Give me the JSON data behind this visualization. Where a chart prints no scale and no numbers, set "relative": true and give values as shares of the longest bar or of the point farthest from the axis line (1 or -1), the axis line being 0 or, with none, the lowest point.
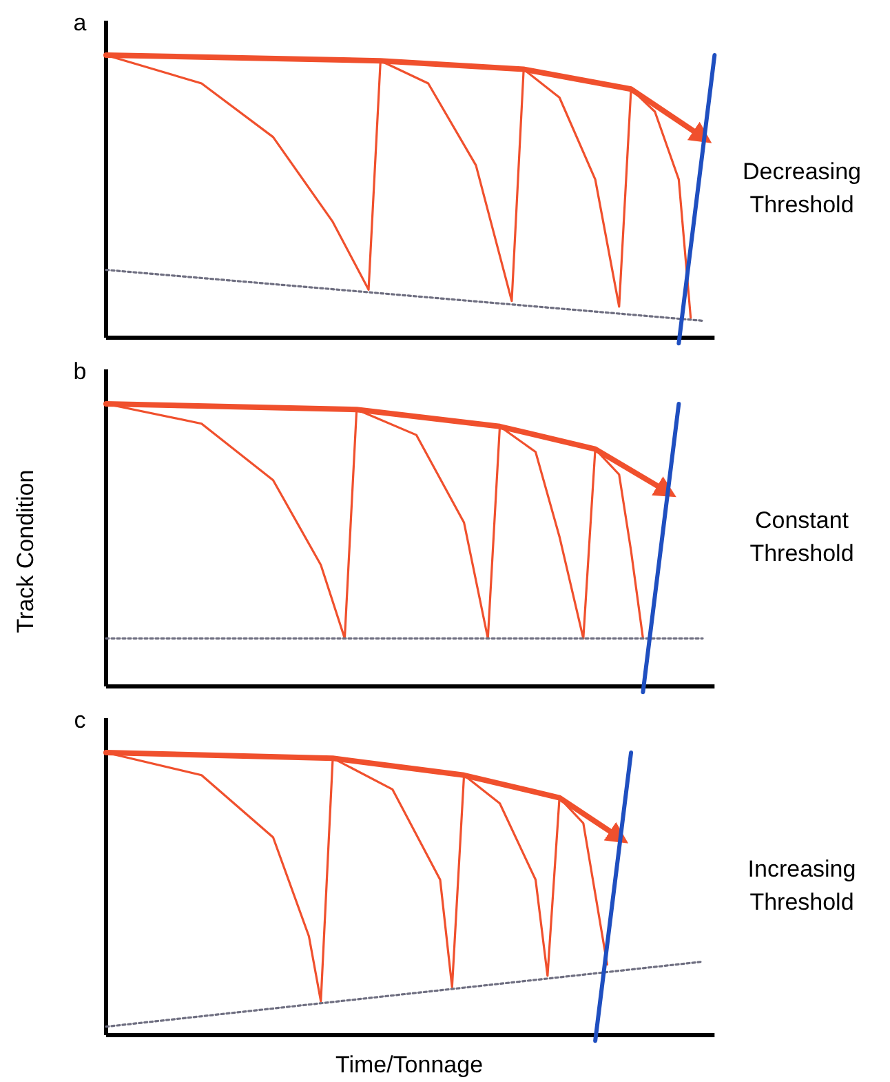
{
  "chart_data": [
    {
      "type": "line",
      "title": "a",
      "relative": true,
      "annotations": [
        "Decreasing Threshold"
      ],
      "categories": [
        null,
        null,
        null,
        null,
        null,
        null,
        null,
        null,
        null,
        null,
        null,
        null,
        null,
        null,
        null,
        null,
        null,
        null,
        null,
        null,
        null,
        null,
        null,
        null,
        null,
        null,
        null,
        null,
        null,
        null,
        null,
        null,
        null,
        null,
        null,
        null,
        null,
        null,
        null,
        null,
        null,
        null,
        null,
        null,
        null,
        null,
        null,
        null,
        null,
        null,
        null,
        null
      ],
      "series": [
        {
          "color": "#f0502d",
          "values": [
            1,
            null,
            null,
            null,
            null,
            null,
            null,
            null,
            null,
            null,
            null,
            null,
            null,
            null,
            null,
            null,
            null,
            null,
            null,
            null,
            null,
            null,
            null,
            0.98,
            null,
            null,
            null,
            null,
            null,
            null,
            null,
            null,
            null,
            null,
            null,
            0.95,
            null,
            null,
            null,
            null,
            null,
            null,
            null,
            null,
            0.88,
            null,
            null,
            null,
            null,
            null,
            0.71,
            null
          ]
        },
        {
          "color": "#f0502d",
          "values": [
            1,
            null,
            null,
            null,
            null,
            null,
            null,
            null,
            0.9,
            null,
            null,
            null,
            null,
            null,
            0.71,
            null,
            null,
            null,
            null,
            0.41,
            null,
            null,
            0.17,
            0.98,
            null,
            null,
            null,
            null,
            null,
            null,
            null,
            null,
            null,
            null,
            null,
            null,
            null,
            null,
            null,
            null,
            null,
            null,
            null,
            null,
            null,
            null,
            null,
            null,
            null,
            null,
            null,
            null
          ]
        },
        {
          "color": "#f0502d",
          "values": [
            null,
            null,
            null,
            null,
            null,
            null,
            null,
            null,
            null,
            null,
            null,
            null,
            null,
            null,
            null,
            null,
            null,
            null,
            null,
            null,
            null,
            null,
            null,
            0.98,
            null,
            null,
            null,
            0.9,
            null,
            null,
            null,
            0.61,
            null,
            null,
            0.13,
            0.95,
            null,
            null,
            null,
            null,
            null,
            null,
            null,
            null,
            null,
            null,
            null,
            null,
            null,
            null,
            null,
            null
          ]
        },
        {
          "color": "#f0502d",
          "values": [
            null,
            null,
            null,
            null,
            null,
            null,
            null,
            null,
            null,
            null,
            null,
            null,
            null,
            null,
            null,
            null,
            null,
            null,
            null,
            null,
            null,
            null,
            null,
            null,
            null,
            null,
            null,
            null,
            null,
            null,
            null,
            null,
            null,
            null,
            null,
            0.95,
            null,
            null,
            0.85,
            null,
            null,
            0.56,
            null,
            0.11,
            0.88,
            null,
            null,
            null,
            null,
            null,
            null,
            null
          ]
        },
        {
          "color": "#f0502d",
          "values": [
            null,
            null,
            null,
            null,
            null,
            null,
            null,
            null,
            null,
            null,
            null,
            null,
            null,
            null,
            null,
            null,
            null,
            null,
            null,
            null,
            null,
            null,
            null,
            null,
            null,
            null,
            null,
            null,
            null,
            null,
            null,
            null,
            null,
            null,
            null,
            null,
            null,
            null,
            null,
            null,
            null,
            null,
            null,
            null,
            0.88,
            null,
            0.8,
            null,
            0.56,
            0.07,
            null,
            null
          ]
        },
        {
          "color": "#6e6e80",
          "line_style": "dotted",
          "values": [
            0.24,
            null,
            null,
            null,
            null,
            null,
            null,
            null,
            null,
            null,
            null,
            null,
            null,
            null,
            null,
            null,
            null,
            null,
            null,
            null,
            null,
            null,
            null,
            null,
            null,
            null,
            null,
            null,
            null,
            null,
            null,
            null,
            null,
            null,
            null,
            null,
            null,
            null,
            null,
            null,
            null,
            null,
            null,
            null,
            null,
            null,
            null,
            null,
            null,
            null,
            0.06,
            null
          ]
        },
        {
          "color": "#1f4fc0",
          "values": [
            null,
            null,
            null,
            null,
            null,
            null,
            null,
            null,
            null,
            null,
            null,
            null,
            null,
            null,
            null,
            null,
            null,
            null,
            null,
            null,
            null,
            null,
            null,
            null,
            null,
            null,
            null,
            null,
            null,
            null,
            null,
            null,
            null,
            null,
            null,
            null,
            null,
            null,
            null,
            null,
            null,
            null,
            null,
            null,
            null,
            null,
            null,
            null,
            -0.02,
            null,
            null,
            1
          ]
        }
      ]
    },
    {
      "type": "line",
      "title": "b",
      "ylabel": "Track Condition",
      "relative": true,
      "annotations": [
        "Constant Threshold"
      ],
      "categories": [
        null,
        null,
        null,
        null,
        null,
        null,
        null,
        null,
        null,
        null,
        null,
        null,
        null,
        null,
        null,
        null,
        null,
        null,
        null,
        null,
        null,
        null,
        null,
        null,
        null,
        null,
        null,
        null,
        null,
        null,
        null,
        null,
        null,
        null,
        null,
        null,
        null,
        null,
        null,
        null,
        null,
        null,
        null,
        null,
        null,
        null,
        null,
        null,
        null,
        null,
        null,
        null
      ],
      "series": [
        {
          "color": "#f0502d",
          "values": [
            1,
            null,
            null,
            null,
            null,
            null,
            null,
            null,
            null,
            null,
            null,
            null,
            null,
            null,
            null,
            null,
            null,
            null,
            null,
            null,
            null,
            0.98,
            null,
            null,
            null,
            null,
            null,
            null,
            null,
            null,
            null,
            null,
            null,
            0.92,
            null,
            null,
            null,
            null,
            null,
            null,
            null,
            0.84,
            null,
            null,
            null,
            null,
            null,
            0.69,
            null,
            null,
            null,
            null
          ]
        },
        {
          "color": "#f0502d",
          "values": [
            1,
            null,
            null,
            null,
            null,
            null,
            null,
            null,
            0.93,
            null,
            null,
            null,
            null,
            null,
            0.73,
            null,
            null,
            null,
            0.43,
            null,
            0.17,
            0.98,
            null,
            null,
            null,
            null,
            null,
            null,
            null,
            null,
            null,
            null,
            null,
            null,
            null,
            null,
            null,
            null,
            null,
            null,
            null,
            null,
            null,
            null,
            null,
            null,
            null,
            null,
            null,
            null,
            null,
            null
          ]
        },
        {
          "color": "#f0502d",
          "values": [
            null,
            null,
            null,
            null,
            null,
            null,
            null,
            null,
            null,
            null,
            null,
            null,
            null,
            null,
            null,
            null,
            null,
            null,
            null,
            null,
            null,
            0.98,
            null,
            null,
            null,
            null,
            0.89,
            null,
            null,
            null,
            0.58,
            null,
            0.17,
            0.92,
            null,
            null,
            null,
            null,
            null,
            null,
            null,
            null,
            null,
            null,
            null,
            null,
            null,
            null,
            null,
            null,
            null,
            null
          ]
        },
        {
          "color": "#f0502d",
          "values": [
            null,
            null,
            null,
            null,
            null,
            null,
            null,
            null,
            null,
            null,
            null,
            null,
            null,
            null,
            null,
            null,
            null,
            null,
            null,
            null,
            null,
            null,
            null,
            null,
            null,
            null,
            null,
            null,
            null,
            null,
            null,
            null,
            null,
            0.92,
            null,
            null,
            0.83,
            null,
            0.53,
            null,
            0.17,
            0.84,
            null,
            null,
            null,
            null,
            null,
            null,
            null,
            null,
            null,
            null
          ]
        },
        {
          "color": "#f0502d",
          "values": [
            null,
            null,
            null,
            null,
            null,
            null,
            null,
            null,
            null,
            null,
            null,
            null,
            null,
            null,
            null,
            null,
            null,
            null,
            null,
            null,
            null,
            null,
            null,
            null,
            null,
            null,
            null,
            null,
            null,
            null,
            null,
            null,
            null,
            null,
            null,
            null,
            null,
            null,
            null,
            null,
            null,
            0.84,
            null,
            0.75,
            0.48,
            0.17,
            null,
            null,
            null,
            null,
            null,
            null
          ]
        },
        {
          "color": "#6e6e80",
          "line_style": "dotted",
          "values": [
            0.17,
            null,
            null,
            null,
            null,
            null,
            null,
            null,
            null,
            null,
            null,
            null,
            null,
            null,
            null,
            null,
            null,
            null,
            null,
            null,
            null,
            null,
            null,
            null,
            null,
            null,
            null,
            null,
            null,
            null,
            null,
            null,
            null,
            null,
            null,
            null,
            null,
            null,
            null,
            null,
            null,
            null,
            null,
            null,
            null,
            null,
            null,
            null,
            null,
            null,
            0.17,
            null
          ]
        },
        {
          "color": "#1f4fc0",
          "values": [
            null,
            null,
            null,
            null,
            null,
            null,
            null,
            null,
            null,
            null,
            null,
            null,
            null,
            null,
            null,
            null,
            null,
            null,
            null,
            null,
            null,
            null,
            null,
            null,
            null,
            null,
            null,
            null,
            null,
            null,
            null,
            null,
            null,
            null,
            null,
            null,
            null,
            null,
            null,
            null,
            null,
            null,
            null,
            null,
            null,
            -0.02,
            null,
            null,
            1,
            null,
            null,
            null
          ]
        }
      ]
    },
    {
      "type": "line",
      "title": "c",
      "xlabel": "Time/Tonnage",
      "relative": true,
      "annotations": [
        "Increasing Threshold"
      ],
      "categories": [
        null,
        null,
        null,
        null,
        null,
        null,
        null,
        null,
        null,
        null,
        null,
        null,
        null,
        null,
        null,
        null,
        null,
        null,
        null,
        null,
        null,
        null,
        null,
        null,
        null,
        null,
        null,
        null,
        null,
        null,
        null,
        null,
        null,
        null,
        null,
        null,
        null,
        null,
        null,
        null,
        null,
        null,
        null,
        null,
        null,
        null,
        null,
        null,
        null,
        null,
        null,
        null
      ],
      "series": [
        {
          "color": "#f0502d",
          "values": [
            1,
            null,
            null,
            null,
            null,
            null,
            null,
            null,
            null,
            null,
            null,
            null,
            null,
            null,
            null,
            null,
            null,
            null,
            null,
            0.98,
            null,
            null,
            null,
            null,
            null,
            null,
            null,
            null,
            null,
            null,
            0.92,
            null,
            null,
            null,
            null,
            null,
            null,
            null,
            0.84,
            null,
            null,
            null,
            null,
            0.7,
            null,
            null,
            null,
            null,
            null,
            null,
            null,
            null
          ]
        },
        {
          "color": "#f0502d",
          "values": [
            1,
            null,
            null,
            null,
            null,
            null,
            null,
            null,
            0.92,
            null,
            null,
            null,
            null,
            null,
            0.7,
            null,
            null,
            0.35,
            0.12,
            0.98,
            null,
            null,
            null,
            null,
            null,
            null,
            null,
            null,
            null,
            null,
            null,
            null,
            null,
            null,
            null,
            null,
            null,
            null,
            null,
            null,
            null,
            null,
            null,
            null,
            null,
            null,
            null,
            null,
            null,
            null,
            null,
            null
          ]
        },
        {
          "color": "#f0502d",
          "values": [
            null,
            null,
            null,
            null,
            null,
            null,
            null,
            null,
            null,
            null,
            null,
            null,
            null,
            null,
            null,
            null,
            null,
            null,
            null,
            0.98,
            null,
            null,
            null,
            null,
            0.87,
            null,
            null,
            null,
            0.55,
            0.17,
            0.92,
            null,
            null,
            null,
            null,
            null,
            null,
            null,
            null,
            null,
            null,
            null,
            null,
            null,
            null,
            null,
            null,
            null,
            null,
            null,
            null,
            null
          ]
        },
        {
          "color": "#f0502d",
          "values": [
            null,
            null,
            null,
            null,
            null,
            null,
            null,
            null,
            null,
            null,
            null,
            null,
            null,
            null,
            null,
            null,
            null,
            null,
            null,
            null,
            null,
            null,
            null,
            null,
            null,
            null,
            null,
            null,
            null,
            null,
            0.92,
            null,
            null,
            0.82,
            null,
            null,
            0.55,
            0.21,
            0.84,
            null,
            null,
            null,
            null,
            null,
            null,
            null,
            null,
            null,
            null,
            null,
            null,
            null
          ]
        },
        {
          "color": "#f0502d",
          "values": [
            null,
            null,
            null,
            null,
            null,
            null,
            null,
            null,
            null,
            null,
            null,
            null,
            null,
            null,
            null,
            null,
            null,
            null,
            null,
            null,
            null,
            null,
            null,
            null,
            null,
            null,
            null,
            null,
            null,
            null,
            null,
            null,
            null,
            null,
            null,
            null,
            null,
            null,
            0.84,
            null,
            0.75,
            0.5,
            0.25,
            null,
            null,
            null,
            null,
            null,
            null,
            null,
            null,
            null
          ]
        },
        {
          "color": "#6e6e80",
          "line_style": "dotted",
          "values": [
            0.03,
            null,
            null,
            null,
            null,
            null,
            null,
            null,
            null,
            null,
            null,
            null,
            null,
            null,
            null,
            null,
            null,
            null,
            null,
            null,
            null,
            null,
            null,
            null,
            null,
            null,
            null,
            null,
            null,
            null,
            null,
            null,
            null,
            null,
            null,
            null,
            null,
            null,
            null,
            null,
            null,
            null,
            null,
            null,
            null,
            null,
            null,
            null,
            null,
            null,
            0.26,
            null
          ]
        },
        {
          "color": "#1f4fc0",
          "values": [
            null,
            null,
            null,
            null,
            null,
            null,
            null,
            null,
            null,
            null,
            null,
            null,
            null,
            null,
            null,
            null,
            null,
            null,
            null,
            null,
            null,
            null,
            null,
            null,
            null,
            null,
            null,
            null,
            null,
            null,
            null,
            null,
            null,
            null,
            null,
            null,
            null,
            null,
            null,
            null,
            null,
            -0.02,
            null,
            null,
            1,
            null,
            null,
            null,
            null,
            null,
            null,
            null
          ]
        }
      ]
    }
  ]
}
